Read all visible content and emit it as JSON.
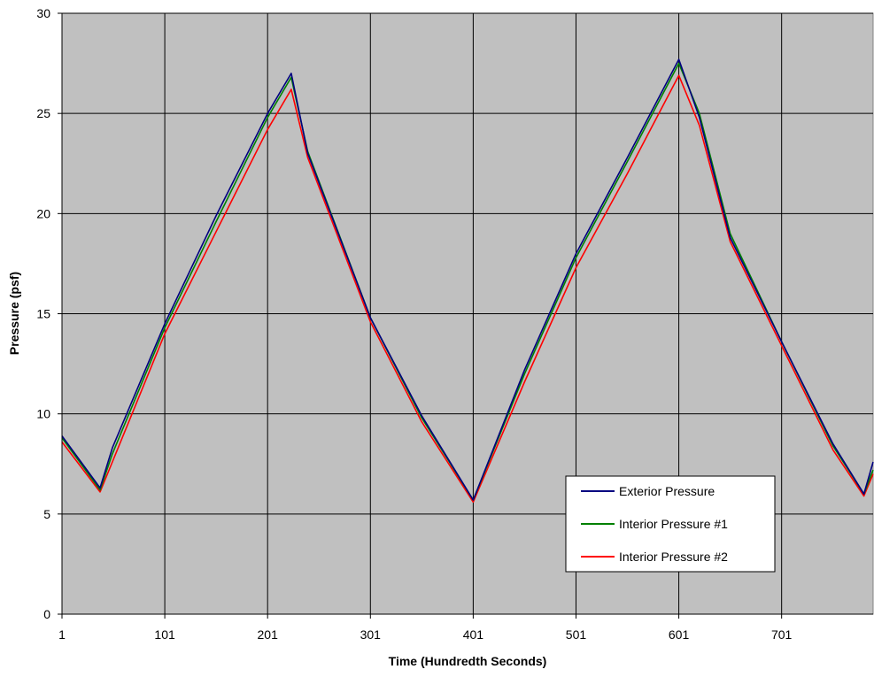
{
  "chart_data": {
    "type": "line",
    "title": "",
    "xlabel": "Time (Hundredth Seconds)",
    "ylabel": "Pressure (psf)",
    "xlim": [
      1,
      790
    ],
    "ylim": [
      0,
      30
    ],
    "x_ticks": [
      "1",
      "101",
      "201",
      "301",
      "401",
      "501",
      "601",
      "701"
    ],
    "y_ticks": [
      "0",
      "5",
      "10",
      "15",
      "20",
      "25",
      "30"
    ],
    "grid": true,
    "plot_background": "#C0C0C0",
    "legend_position": "bottom-right",
    "series": [
      {
        "name": "Exterior Pressure",
        "color": "#000080",
        "points": [
          [
            1,
            8.9
          ],
          [
            38,
            6.3
          ],
          [
            50,
            8.3
          ],
          [
            101,
            14.5
          ],
          [
            151,
            19.9
          ],
          [
            201,
            25.0
          ],
          [
            224,
            27.0
          ],
          [
            240,
            23.0
          ],
          [
            301,
            14.8
          ],
          [
            351,
            9.9
          ],
          [
            401,
            5.7
          ],
          [
            451,
            12.2
          ],
          [
            501,
            18.0
          ],
          [
            551,
            22.8
          ],
          [
            601,
            27.7
          ],
          [
            621,
            24.8
          ],
          [
            651,
            18.8
          ],
          [
            701,
            13.6
          ],
          [
            751,
            8.5
          ],
          [
            781,
            6.0
          ],
          [
            790,
            7.6
          ]
        ]
      },
      {
        "name": "Interior Pressure #1",
        "color": "#008000",
        "points": [
          [
            1,
            8.8
          ],
          [
            38,
            6.2
          ],
          [
            50,
            8.0
          ],
          [
            101,
            14.3
          ],
          [
            151,
            19.6
          ],
          [
            201,
            24.8
          ],
          [
            224,
            26.8
          ],
          [
            240,
            23.1
          ],
          [
            301,
            14.8
          ],
          [
            351,
            9.8
          ],
          [
            401,
            5.7
          ],
          [
            451,
            12.0
          ],
          [
            501,
            17.8
          ],
          [
            551,
            22.6
          ],
          [
            601,
            27.5
          ],
          [
            621,
            25.0
          ],
          [
            651,
            19.0
          ],
          [
            701,
            13.6
          ],
          [
            751,
            8.4
          ],
          [
            781,
            6.0
          ],
          [
            790,
            7.2
          ]
        ]
      },
      {
        "name": "Interior Pressure #2",
        "color": "#FF0000",
        "points": [
          [
            1,
            8.6
          ],
          [
            38,
            6.1
          ],
          [
            50,
            7.6
          ],
          [
            101,
            14.0
          ],
          [
            151,
            19.1
          ],
          [
            201,
            24.2
          ],
          [
            224,
            26.2
          ],
          [
            240,
            22.8
          ],
          [
            301,
            14.6
          ],
          [
            351,
            9.6
          ],
          [
            401,
            5.6
          ],
          [
            451,
            11.6
          ],
          [
            501,
            17.3
          ],
          [
            551,
            22.0
          ],
          [
            601,
            26.9
          ],
          [
            621,
            24.4
          ],
          [
            651,
            18.6
          ],
          [
            701,
            13.4
          ],
          [
            751,
            8.2
          ],
          [
            781,
            5.9
          ],
          [
            790,
            7.0
          ]
        ]
      }
    ]
  }
}
